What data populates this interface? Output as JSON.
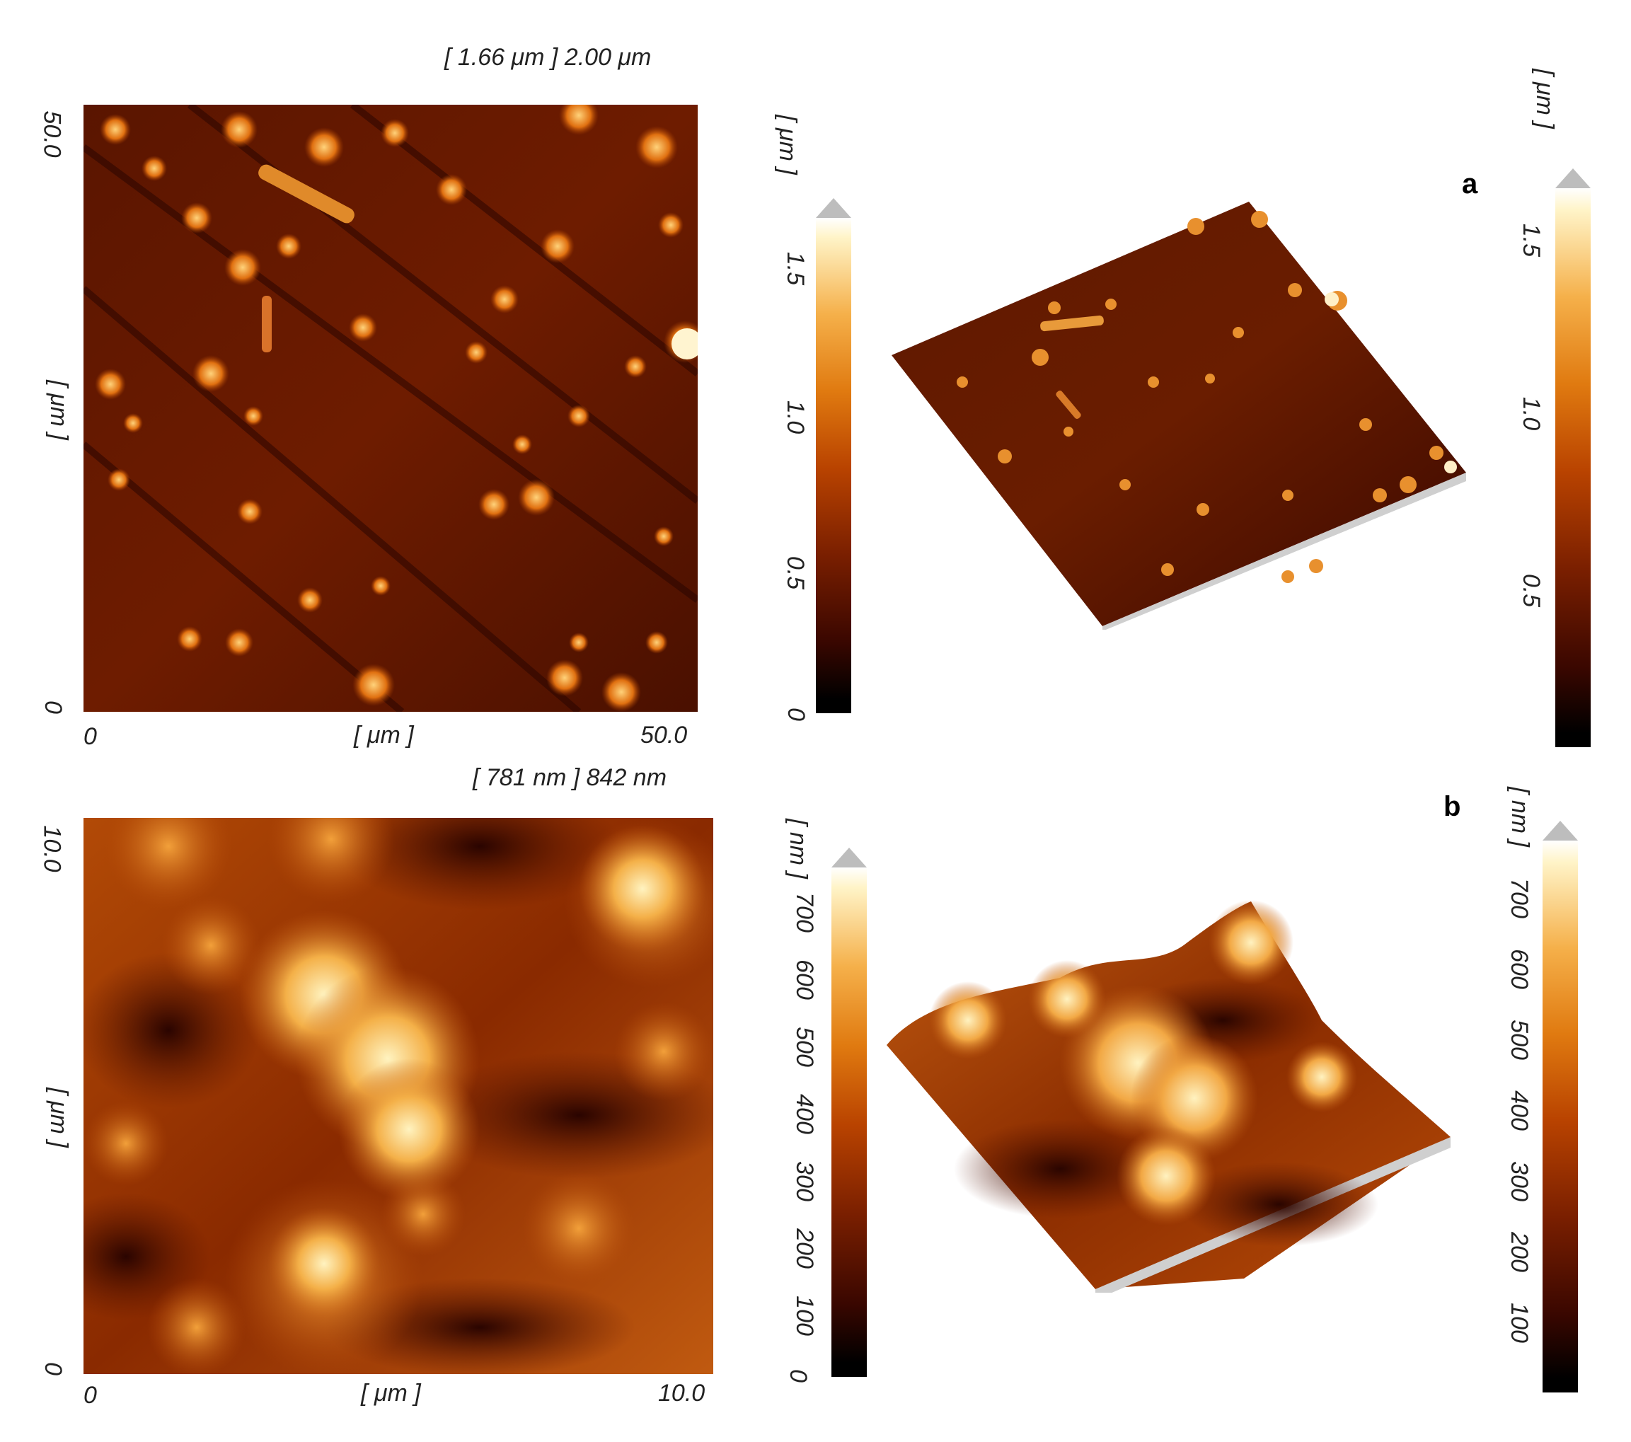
{
  "panel_a": {
    "letter": "a",
    "height_range": "[ 1.66 μm ] 2.00 μm",
    "y_unit": "[ μm ]",
    "x_unit": "[ μm ]",
    "x_ticks": [
      "0",
      "50.0"
    ],
    "y_ticks": [
      "0",
      "50.0"
    ],
    "colorbar_unit": "[ μm ]",
    "colorbar_ticks": [
      "0",
      "0.5",
      "1.0",
      "1.5"
    ],
    "colorbar3d_unit": "[ μm ]",
    "colorbar3d_ticks": [
      "0.5",
      "1.0",
      "1.5"
    ]
  },
  "panel_b": {
    "letter": "b",
    "height_range": "[ 781 nm ] 842 nm",
    "y_unit": "[ μm ]",
    "x_unit": "[ μm ]",
    "x_ticks": [
      "0",
      "10.0"
    ],
    "y_ticks": [
      "0",
      "10.0"
    ],
    "colorbar_unit": "[ nm ]",
    "colorbar_ticks": [
      "0",
      "100",
      "200",
      "300",
      "400",
      "500",
      "600",
      "700"
    ],
    "colorbar3d_unit": "[ nm ]",
    "colorbar3d_ticks": [
      "100",
      "200",
      "300",
      "400",
      "500",
      "600",
      "700"
    ]
  },
  "colors": {
    "dark": "#1a0300",
    "mid": "#7a2400",
    "bright": "#f0a030",
    "peak": "#fff2c0"
  }
}
